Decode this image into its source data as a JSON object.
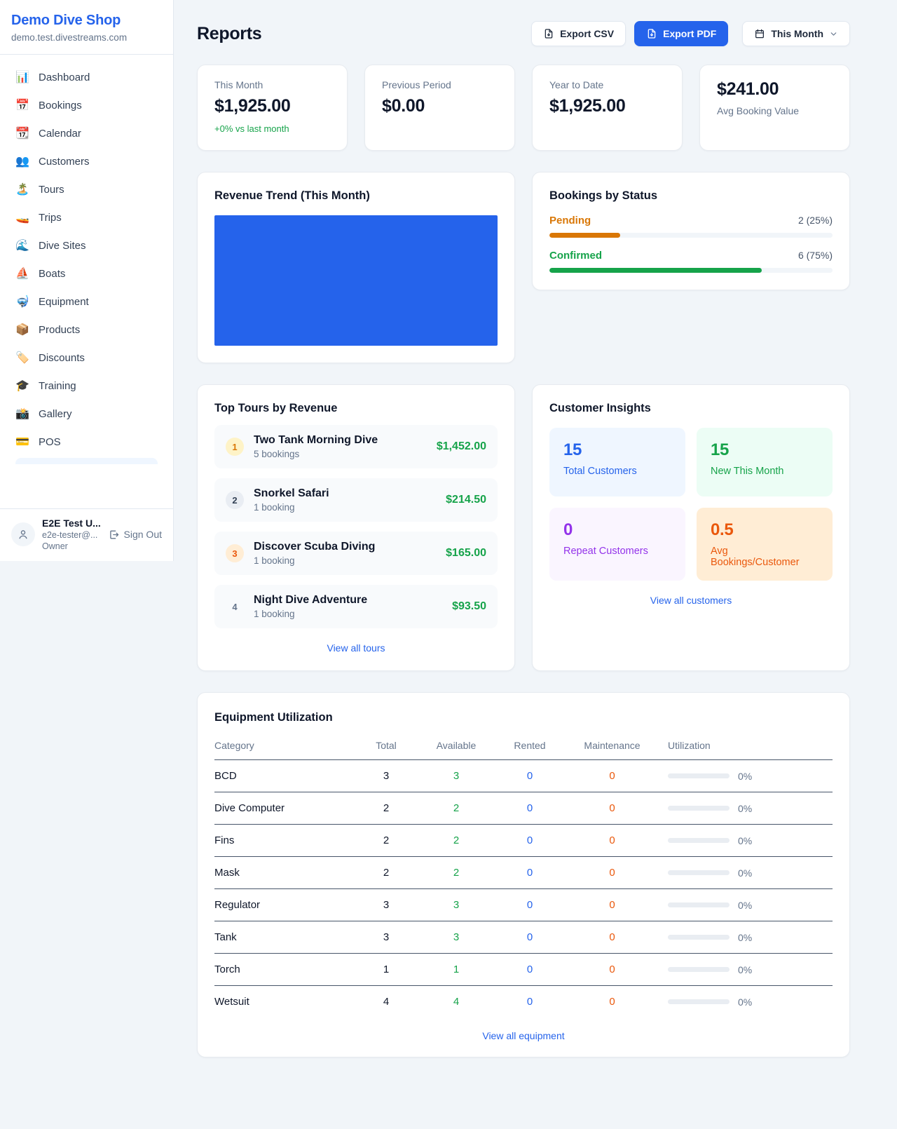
{
  "colors": {
    "accent": "#2563eb",
    "green": "#16a34a",
    "orange": "#d97706",
    "purple": "#9333ea",
    "chart_fill": "#2563eb"
  },
  "sidebar": {
    "shop_name": "Demo Dive Shop",
    "shop_domain": "demo.test.divestreams.com",
    "nav": [
      {
        "icon": "📊",
        "label": "Dashboard"
      },
      {
        "icon": "📅",
        "label": "Bookings"
      },
      {
        "icon": "📆",
        "label": "Calendar"
      },
      {
        "icon": "👥",
        "label": "Customers"
      },
      {
        "icon": "🏝️",
        "label": "Tours"
      },
      {
        "icon": "🚤",
        "label": "Trips"
      },
      {
        "icon": "🌊",
        "label": "Dive Sites"
      },
      {
        "icon": "⛵",
        "label": "Boats"
      },
      {
        "icon": "🤿",
        "label": "Equipment"
      },
      {
        "icon": "📦",
        "label": "Products"
      },
      {
        "icon": "🏷️",
        "label": "Discounts"
      },
      {
        "icon": "🎓",
        "label": "Training"
      },
      {
        "icon": "📸",
        "label": "Gallery"
      },
      {
        "icon": "💳",
        "label": "POS"
      }
    ],
    "user": {
      "name": "E2E Test U...",
      "email": "e2e-tester@...",
      "role": "Owner",
      "sign_out_label": "Sign Out"
    }
  },
  "header": {
    "title": "Reports",
    "export_csv_label": "Export CSV",
    "export_pdf_label": "Export PDF",
    "period_label": "This Month"
  },
  "stats": [
    {
      "label": "This Month",
      "value": "$1,925.00",
      "delta": "+0% vs last month"
    },
    {
      "label": "Previous Period",
      "value": "$0.00"
    },
    {
      "label": "Year to Date",
      "value": "$1,925.00"
    },
    {
      "label": "Avg Booking Value",
      "value": "$241.00"
    }
  ],
  "revenue_trend": {
    "title": "Revenue Trend (This Month)"
  },
  "bookings_by_status": {
    "title": "Bookings by Status",
    "rows": [
      {
        "label": "Pending",
        "value": "2 (25%)",
        "pct": 25
      },
      {
        "label": "Confirmed",
        "value": "6 (75%)",
        "pct": 75
      }
    ]
  },
  "top_tours": {
    "title": "Top Tours by Revenue",
    "items": [
      {
        "rank": "1",
        "name": "Two Tank Morning Dive",
        "bookings": "5 bookings",
        "revenue": "$1,452.00"
      },
      {
        "rank": "2",
        "name": "Snorkel Safari",
        "bookings": "1 booking",
        "revenue": "$214.50"
      },
      {
        "rank": "3",
        "name": "Discover Scuba Diving",
        "bookings": "1 booking",
        "revenue": "$165.00"
      },
      {
        "rank": "4",
        "name": "Night Dive Adventure",
        "bookings": "1 booking",
        "revenue": "$93.50"
      }
    ],
    "view_all_label": "View all tours"
  },
  "customer_insights": {
    "title": "Customer Insights",
    "tiles": [
      {
        "value": "15",
        "label": "Total Customers"
      },
      {
        "value": "15",
        "label": "New This Month"
      },
      {
        "value": "0",
        "label": "Repeat Customers"
      },
      {
        "value": "0.5",
        "label": "Avg Bookings/Customer"
      }
    ],
    "view_all_label": "View all customers"
  },
  "equipment": {
    "title": "Equipment Utilization",
    "columns": [
      "Category",
      "Total",
      "Available",
      "Rented",
      "Maintenance",
      "Utilization"
    ],
    "rows": [
      {
        "category": "BCD",
        "total": "3",
        "available": "3",
        "rented": "0",
        "maintenance": "0",
        "utilization": "0%",
        "util_pct": 0
      },
      {
        "category": "Dive Computer",
        "total": "2",
        "available": "2",
        "rented": "0",
        "maintenance": "0",
        "utilization": "0%",
        "util_pct": 0
      },
      {
        "category": "Fins",
        "total": "2",
        "available": "2",
        "rented": "0",
        "maintenance": "0",
        "utilization": "0%",
        "util_pct": 0
      },
      {
        "category": "Mask",
        "total": "2",
        "available": "2",
        "rented": "0",
        "maintenance": "0",
        "utilization": "0%",
        "util_pct": 0
      },
      {
        "category": "Regulator",
        "total": "3",
        "available": "3",
        "rented": "0",
        "maintenance": "0",
        "utilization": "0%",
        "util_pct": 0
      },
      {
        "category": "Tank",
        "total": "3",
        "available": "3",
        "rented": "0",
        "maintenance": "0",
        "utilization": "0%",
        "util_pct": 0
      },
      {
        "category": "Torch",
        "total": "1",
        "available": "1",
        "rented": "0",
        "maintenance": "0",
        "utilization": "0%",
        "util_pct": 0
      },
      {
        "category": "Wetsuit",
        "total": "4",
        "available": "4",
        "rented": "0",
        "maintenance": "0",
        "utilization": "0%",
        "util_pct": 0
      }
    ],
    "view_all_label": "View all equipment"
  }
}
